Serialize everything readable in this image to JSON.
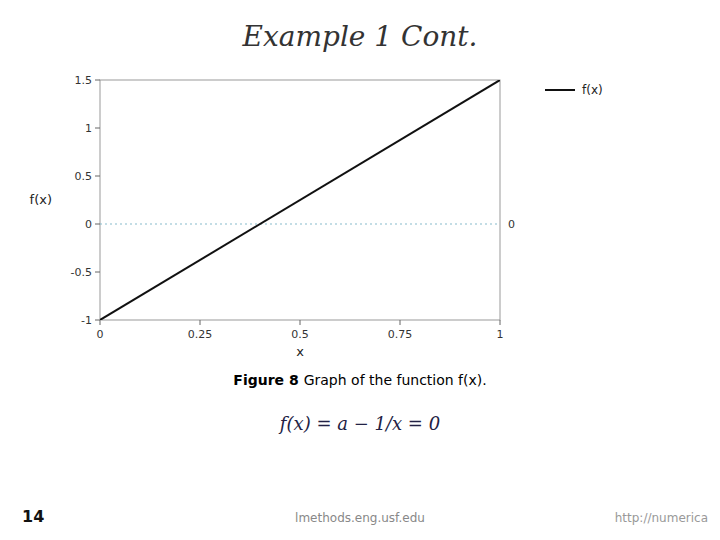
{
  "chart_data": {
    "type": "line",
    "title": "Example 1 Cont.",
    "x_label": "x",
    "y_label": "f(x)",
    "x": [
      0,
      1
    ],
    "series": [
      {
        "name": "f(x)",
        "color": "#111111",
        "values": [
          -1,
          1.5
        ]
      }
    ],
    "xlim": [
      0,
      1
    ],
    "ylim": [
      -1,
      1.5
    ],
    "xticks": [
      0,
      0.25,
      0.5,
      0.75,
      1
    ],
    "yticks": [
      -1,
      -0.5,
      0,
      0.5,
      1,
      1.5
    ],
    "grid": false,
    "legend": "right",
    "annotations": [
      {
        "text": "0",
        "y": 0,
        "color": "#88bbcc"
      },
      {
        "text": "Figure 8"
      },
      {
        "text": "Graph of the function f(x)."
      },
      {
        "text": "f(x) = a − 1/x = 0"
      },
      {
        "text": "14"
      },
      {
        "text": "lmethods.eng.usf.edu"
      },
      {
        "text": "http://numerica"
      }
    ]
  }
}
